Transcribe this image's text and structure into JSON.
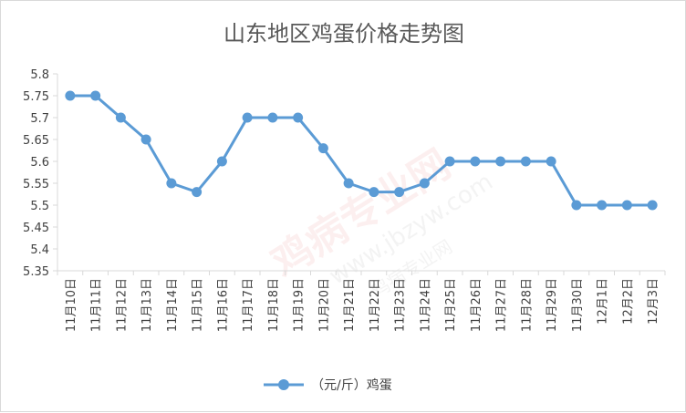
{
  "chart_data": {
    "type": "line",
    "title": "山东地区鸡蛋价格走势图",
    "categories": [
      "11月10日",
      "11月11日",
      "11月12日",
      "11月13日",
      "11月14日",
      "11月15日",
      "11月16日",
      "11月17日",
      "11月18日",
      "11月19日",
      "11月20日",
      "11月21日",
      "11月22日",
      "11月23日",
      "11月24日",
      "11月25日",
      "11月26日",
      "11月27日",
      "11月28日",
      "11月29日",
      "11月30日",
      "12月1日",
      "12月2日",
      "12月3日"
    ],
    "series": [
      {
        "name": "（元/斤）鸡蛋",
        "values": [
          5.75,
          5.75,
          5.7,
          5.65,
          5.55,
          5.53,
          5.6,
          5.7,
          5.7,
          5.7,
          5.63,
          5.55,
          5.53,
          5.53,
          5.55,
          5.6,
          5.6,
          5.6,
          5.6,
          5.6,
          5.5,
          5.5,
          5.5,
          5.5
        ]
      }
    ],
    "yticks": [
      "5.35",
      "5.4",
      "5.45",
      "5.5",
      "5.55",
      "5.6",
      "5.65",
      "5.7",
      "5.75",
      "5.8"
    ],
    "ylim": [
      5.35,
      5.8
    ],
    "xlabel": "",
    "ylabel": "",
    "grid": false,
    "legend_position": "bottom",
    "colors": {
      "line": "#5b9bd5",
      "axis": "#d9d9d9",
      "text": "#404040",
      "title": "#595959"
    }
  },
  "watermark": {
    "brand": "鸡病专业网",
    "url": "www.jbzyw.com",
    "slogan": "鸡病专业网"
  }
}
